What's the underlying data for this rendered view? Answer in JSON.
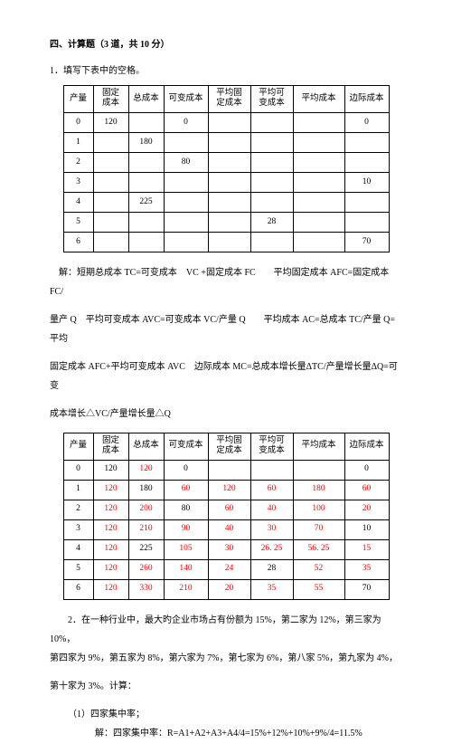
{
  "title": "四、计算题（3 道，共 10 分）",
  "p1": {
    "text": "1．填写下表中的空格。",
    "table1": {
      "headers": [
        "产量",
        "固定成本",
        "总成本",
        "可变成本",
        "平均固定成本",
        "平均可变成本",
        "平均成本",
        "边际成本"
      ],
      "rows": [
        [
          "0",
          "120",
          "",
          "0",
          "",
          "",
          "",
          "0"
        ],
        [
          "1",
          "",
          "180",
          "",
          "",
          "",
          "",
          ""
        ],
        [
          "2",
          "",
          "",
          "80",
          "",
          "",
          "",
          ""
        ],
        [
          "3",
          "",
          "",
          "",
          "",
          "",
          "",
          "10"
        ],
        [
          "4",
          "",
          "225",
          "",
          "",
          "",
          "",
          ""
        ],
        [
          "5",
          "",
          "",
          "",
          "",
          "28",
          "",
          ""
        ],
        [
          "6",
          "",
          "",
          "",
          "",
          "",
          "",
          "70"
        ]
      ]
    },
    "explain1": "解：短期总成本 TC=可变成本　VC +固定成本 FC　　平均固定成本 AFC=固定成本 FC/",
    "explain2": "量产 Q　平均可变成本 AVC=可变成本 VC/产量 Q　　平均成本 AC=总成本 TC/产量 Q=平均",
    "explain3": "固定成本 AFC+平均可变成本 AVC　边际成本 MC=总成本增长量ΔTC/产量增长量ΔQ=可变",
    "explain4": "成本增长△VC/产量增长量△Q",
    "table2": {
      "headers": [
        "产量",
        "固定成本",
        "总成本",
        "可变成本",
        "平均固定成本",
        "平均可变成本",
        "平均成本",
        "边际成本"
      ],
      "rows": [
        [
          "0",
          "120",
          "120",
          "0",
          "",
          "",
          "",
          "0"
        ],
        [
          "1",
          "120",
          "180",
          "60",
          "120",
          "60",
          "180",
          "60"
        ],
        [
          "2",
          "120",
          "200",
          "80",
          "60",
          "40",
          "100",
          "20"
        ],
        [
          "3",
          "120",
          "210",
          "90",
          "40",
          "30",
          "70",
          "10"
        ],
        [
          "4",
          "120",
          "225",
          "105",
          "30",
          "26. 25",
          "56. 25",
          "15"
        ],
        [
          "5",
          "120",
          "260",
          "140",
          "24",
          "28",
          "52",
          "35"
        ],
        [
          "6",
          "120",
          "330",
          "210",
          "20",
          "35",
          "55",
          "70"
        ]
      ],
      "answerCells": [
        [
          0,
          2
        ],
        [
          1,
          1
        ],
        [
          1,
          3
        ],
        [
          1,
          4
        ],
        [
          1,
          5
        ],
        [
          1,
          6
        ],
        [
          1,
          7
        ],
        [
          2,
          1
        ],
        [
          2,
          2
        ],
        [
          2,
          4
        ],
        [
          2,
          5
        ],
        [
          2,
          6
        ],
        [
          2,
          7
        ],
        [
          3,
          1
        ],
        [
          3,
          2
        ],
        [
          3,
          3
        ],
        [
          3,
          4
        ],
        [
          3,
          5
        ],
        [
          3,
          6
        ],
        [
          4,
          1
        ],
        [
          4,
          3
        ],
        [
          4,
          4
        ],
        [
          4,
          5
        ],
        [
          4,
          6
        ],
        [
          4,
          7
        ],
        [
          5,
          1
        ],
        [
          5,
          2
        ],
        [
          5,
          3
        ],
        [
          5,
          4
        ],
        [
          5,
          6
        ],
        [
          5,
          7
        ],
        [
          6,
          1
        ],
        [
          6,
          2
        ],
        [
          6,
          3
        ],
        [
          6,
          4
        ],
        [
          6,
          5
        ],
        [
          6,
          6
        ]
      ]
    }
  },
  "p2": {
    "line1": "2．在一种行业中，最大旳企业市场占有份额为 15%，第二家为 12%，第三家为 10%，",
    "line2": "第四家为 9%，第五家为 8%，第六家为 7%，第七家为 6%，第八家 5%，第九家为 4%，",
    "line3": "第十家为 3%。计算：",
    "q1": "（1）四家集中率；",
    "sol1": "解：四家集中率：R=A1+A2+A3+A4/4=15%+12%+10%+9%/4=11.5%"
  }
}
